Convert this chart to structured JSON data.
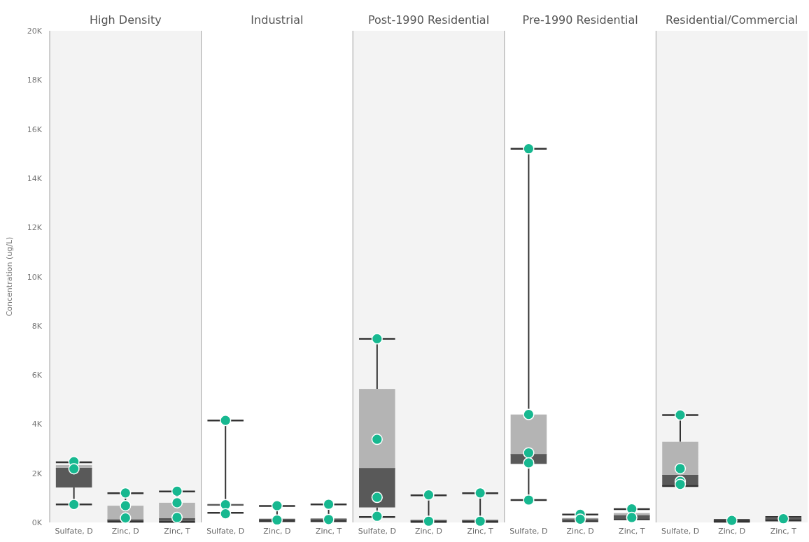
{
  "chart_data": [
    {
      "type": "box",
      "title": "High Density",
      "ylabel": "Concentration (ug/L)",
      "categories": [
        "Sulfate, D",
        "Zinc, D",
        "Zinc, T"
      ],
      "ylim": [
        0,
        20000
      ],
      "yticks": [
        {
          "value": 0,
          "label": "0K"
        },
        {
          "value": 2000,
          "label": "2K"
        },
        {
          "value": 4000,
          "label": "4K"
        },
        {
          "value": 6000,
          "label": "6K"
        },
        {
          "value": 8000,
          "label": "8K"
        },
        {
          "value": 10000,
          "label": "10K"
        },
        {
          "value": 12000,
          "label": "12K"
        },
        {
          "value": 14000,
          "label": "14K"
        },
        {
          "value": 16000,
          "label": "16K"
        },
        {
          "value": 18000,
          "label": "18K"
        },
        {
          "value": 20000,
          "label": "20K"
        }
      ],
      "marker": "circle",
      "series": [
        {
          "type": "box",
          "color": "#595959",
          "boxes": [
            {
              "low": 730,
              "q1": 1420,
              "median": 2200,
              "q3": 2330,
              "high": 2450
            },
            {
              "low": 30,
              "q1": 50,
              "median": 100,
              "q3": 680,
              "high": 1190
            },
            {
              "low": 20,
              "q1": 60,
              "median": 150,
              "q3": 800,
              "high": 1260
            }
          ]
        },
        {
          "type": "scatter",
          "color": "#17b890",
          "x": [
            "Sulfate, D",
            "Sulfate, D",
            "Sulfate, D",
            "Zinc, D",
            "Zinc, D",
            "Zinc, D",
            "Zinc, T",
            "Zinc, T",
            "Zinc, T"
          ],
          "values": [
            2470,
            2180,
            730,
            1200,
            680,
            180,
            1270,
            800,
            200
          ]
        }
      ]
    },
    {
      "type": "box",
      "title": "Industrial",
      "categories": [
        "Sulfate, D",
        "Zinc, D",
        "Zinc, T"
      ],
      "ylim": [
        0,
        20000
      ],
      "tick_labels": "x",
      "marker": "circle",
      "series": [
        {
          "type": "box",
          "color": "#595959",
          "boxes": [
            {
              "low": 390,
              "q1": 680,
              "median": 720,
              "q3": 760,
              "high": 4150
            },
            {
              "low": 50,
              "q1": 80,
              "median": 120,
              "q3": 160,
              "high": 670
            },
            {
              "low": 50,
              "q1": 90,
              "median": 130,
              "q3": 170,
              "high": 730
            }
          ]
        },
        {
          "type": "scatter",
          "color": "#17b890",
          "x": [
            "Sulfate, D",
            "Sulfate, D",
            "Sulfate, D",
            "Zinc, D",
            "Zinc, D",
            "Zinc, T",
            "Zinc, T"
          ],
          "values": [
            4150,
            720,
            350,
            680,
            100,
            740,
            120
          ]
        }
      ]
    },
    {
      "type": "box",
      "title": "Post-1990 Residential",
      "categories": [
        "Sulfate, D",
        "Zinc, D",
        "Zinc, T"
      ],
      "ylim": [
        0,
        20000
      ],
      "tick_labels": "x",
      "marker": "circle",
      "series": [
        {
          "type": "box",
          "color": "#595959",
          "boxes": [
            {
              "low": 220,
              "q1": 610,
              "median": 2190,
              "q3": 5430,
              "high": 7470
            },
            {
              "low": 20,
              "q1": 40,
              "median": 80,
              "q3": 100,
              "high": 1100
            },
            {
              "low": 20,
              "q1": 40,
              "median": 80,
              "q3": 110,
              "high": 1190
            }
          ]
        },
        {
          "type": "scatter",
          "color": "#17b890",
          "x": [
            "Sulfate, D",
            "Sulfate, D",
            "Sulfate, D",
            "Sulfate, D",
            "Zinc, D",
            "Zinc, D",
            "Zinc, T",
            "Zinc, T"
          ],
          "values": [
            7470,
            3380,
            1020,
            250,
            1120,
            50,
            1200,
            50
          ]
        }
      ]
    },
    {
      "type": "box",
      "title": "Pre-1990 Residential",
      "categories": [
        "Sulfate, D",
        "Zinc, D",
        "Zinc, T"
      ],
      "ylim": [
        0,
        20000
      ],
      "tick_labels": "x",
      "marker": "circle",
      "series": [
        {
          "type": "box",
          "color": "#595959",
          "boxes": [
            {
              "low": 910,
              "q1": 2380,
              "median": 2760,
              "q3": 4390,
              "high": 15200
            },
            {
              "low": 50,
              "q1": 100,
              "median": 130,
              "q3": 180,
              "high": 320
            },
            {
              "low": 130,
              "q1": 160,
              "median": 270,
              "q3": 380,
              "high": 540
            }
          ]
        },
        {
          "type": "scatter",
          "color": "#17b890",
          "x": [
            "Sulfate, D",
            "Sulfate, D",
            "Sulfate, D",
            "Sulfate, D",
            "Sulfate, D",
            "Zinc, D",
            "Zinc, D",
            "Zinc, T",
            "Zinc, T"
          ],
          "values": [
            15200,
            4390,
            2830,
            2420,
            910,
            330,
            130,
            550,
            200
          ]
        }
      ]
    },
    {
      "type": "box",
      "title": "Residential/Commercial",
      "categories": [
        "Sulfate, D",
        "Zinc, D",
        "Zinc, T"
      ],
      "ylim": [
        0,
        20000
      ],
      "tick_labels": "x",
      "marker": "circle",
      "series": [
        {
          "type": "box",
          "color": "#595959",
          "boxes": [
            {
              "low": 1480,
              "q1": 1480,
              "median": 1910,
              "q3": 3280,
              "high": 4370
            },
            {
              "low": 30,
              "q1": 50,
              "median": 60,
              "q3": 80,
              "high": 100
            },
            {
              "low": 80,
              "q1": 100,
              "median": 150,
              "q3": 200,
              "high": 220
            }
          ]
        },
        {
          "type": "scatter",
          "color": "#17b890",
          "x": [
            "Sulfate, D",
            "Sulfate, D",
            "Sulfate, D",
            "Sulfate, D",
            "Zinc, D",
            "Zinc, T"
          ],
          "values": [
            4370,
            2190,
            1670,
            1550,
            80,
            150
          ]
        }
      ]
    }
  ]
}
